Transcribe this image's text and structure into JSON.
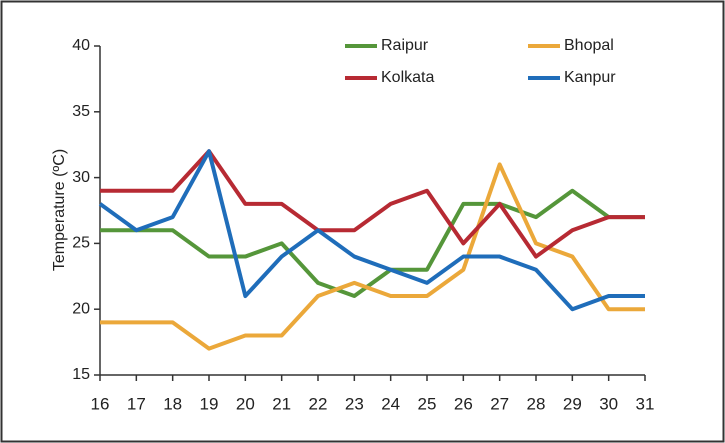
{
  "chart_data": {
    "type": "line",
    "y_label": "Temperature (ºC)",
    "x": [
      16,
      17,
      18,
      19,
      20,
      21,
      22,
      23,
      24,
      25,
      26,
      27,
      28,
      29,
      30,
      31
    ],
    "xlim": [
      16,
      31
    ],
    "xticks": [
      16,
      17,
      18,
      19,
      20,
      21,
      22,
      23,
      24,
      25,
      26,
      27,
      28,
      29,
      30,
      31
    ],
    "ylim": [
      15,
      40
    ],
    "yticks": [
      15,
      20,
      25,
      30,
      35,
      40
    ],
    "grid": false,
    "legend": "top-right",
    "series": [
      {
        "name": "Raipur",
        "color": "#55963a",
        "values": [
          26,
          26,
          26,
          24,
          24,
          25,
          22,
          21,
          23,
          23,
          28,
          28,
          27,
          29,
          27,
          27
        ]
      },
      {
        "name": "Bhopal",
        "color": "#eba83a",
        "values": [
          19,
          19,
          19,
          17,
          18,
          18,
          21,
          22,
          21,
          21,
          23,
          31,
          25,
          24,
          20,
          20
        ]
      },
      {
        "name": "Kolkata",
        "color": "#b72a33",
        "values": [
          29,
          29,
          29,
          32,
          28,
          28,
          26,
          26,
          28,
          29,
          25,
          28,
          24,
          26,
          27,
          27
        ]
      },
      {
        "name": "Kanpur",
        "color": "#1f6dba",
        "values": [
          28,
          26,
          27,
          32,
          21,
          24,
          26,
          24,
          23,
          22,
          24,
          24,
          23,
          20,
          21,
          21
        ]
      }
    ]
  }
}
